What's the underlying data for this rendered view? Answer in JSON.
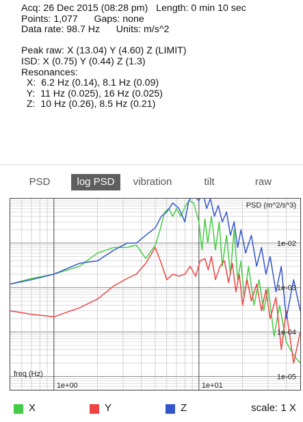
{
  "info": {
    "line1": "Acq: 26 Dec 2015 (08:28 pm)   Length: 0 min 10 sec",
    "line2": "Points: 1,077      Gaps: none",
    "line3": "Data rate: 98.7 Hz      Units: m/s^2",
    "line4": "Peak raw: X (13.04) Y (4.60) Z (LIMIT)",
    "line5": "ISD: X (0.75) Y (0.44) Z (1.3)",
    "line6": "Resonances:",
    "line7": "  X:  6.2 Hz (0.14), 8.1 Hz (0.09)",
    "line8": "  Y:  11 Hz (0.025), 16 Hz (0.025)",
    "line9": "  Z:  10 Hz (0.26), 8.5 Hz (0.21)"
  },
  "tabs": [
    {
      "label": "PSD",
      "active": false
    },
    {
      "label": "log PSD",
      "active": true
    },
    {
      "label": "vibration",
      "active": false
    },
    {
      "label": "tilt",
      "active": false
    },
    {
      "label": "raw",
      "active": false
    }
  ],
  "chart_data": {
    "type": "line",
    "title": "PSD (m^2/s^3)",
    "xlabel": "freq (Hz)",
    "x_scale": "log",
    "y_scale": "log",
    "xlim": [
      0.5,
      50
    ],
    "ylim": [
      5e-06,
      0.1
    ],
    "x_ticks": [
      "1e+00",
      "1e+01"
    ],
    "y_ticks": [
      "1e-02",
      "1e-03",
      "1e-04",
      "1e-05"
    ],
    "series": [
      {
        "name": "X",
        "color": "#44cc44",
        "x": [
          0.5,
          0.7,
          1.0,
          1.5,
          2.0,
          2.6,
          3.2,
          3.7,
          4.3,
          5.0,
          5.4,
          5.8,
          6.2,
          6.6,
          7.0,
          7.5,
          8.1,
          8.6,
          9.2,
          10.0,
          10.5,
          11.0,
          11.5,
          12.2,
          13.0,
          13.8,
          14.5,
          15.5,
          16.5,
          17.5,
          18.5,
          19.5,
          20.5,
          22,
          24,
          26,
          28,
          30,
          33,
          36,
          40,
          45,
          50
        ],
        "y": [
          0.0012,
          0.0016,
          0.002,
          0.003,
          0.006,
          0.008,
          0.008,
          0.009,
          0.0045,
          0.009,
          0.02,
          0.05,
          0.06,
          0.04,
          0.06,
          0.04,
          0.07,
          0.09,
          0.08,
          0.03,
          0.007,
          0.035,
          0.01,
          0.04,
          0.007,
          0.03,
          0.003,
          0.015,
          0.002,
          0.02,
          0.0015,
          0.004,
          0.0006,
          0.003,
          0.0004,
          0.0015,
          0.0003,
          0.001,
          8e-05,
          0.0004,
          6e-05,
          3e-05,
          2e-05
        ]
      },
      {
        "name": "Y",
        "color": "#ee4444",
        "x": [
          0.5,
          0.7,
          1.0,
          1.5,
          2.0,
          2.6,
          3.2,
          3.7,
          4.3,
          5.0,
          5.5,
          6.0,
          6.6,
          7.3,
          8.0,
          8.7,
          9.5,
          10.2,
          11.0,
          11.6,
          12.2,
          13.0,
          14.0,
          15.0,
          16.0,
          17.0,
          18.0,
          19.0,
          20.0,
          21.5,
          23,
          25,
          27,
          29,
          31,
          34,
          37,
          40,
          45,
          50
        ],
        "y": [
          0.0003,
          0.00025,
          0.00022,
          0.00035,
          0.00055,
          0.0011,
          0.0016,
          0.002,
          0.0035,
          0.008,
          0.0035,
          0.0015,
          0.002,
          0.0018,
          0.002,
          0.003,
          0.0018,
          0.004,
          0.0045,
          0.0025,
          0.005,
          0.0015,
          0.003,
          0.004,
          0.0013,
          0.0035,
          0.0008,
          0.002,
          0.0004,
          0.0015,
          0.0005,
          0.0012,
          0.0003,
          0.0009,
          0.0002,
          0.0006,
          4e-05,
          0.0003,
          2e-05,
          0.0001
        ]
      },
      {
        "name": "Z",
        "color": "#3355cc",
        "x": [
          0.5,
          0.7,
          1.0,
          1.5,
          2.0,
          2.6,
          3.2,
          3.7,
          4.3,
          5.0,
          5.5,
          6.0,
          6.6,
          7.3,
          8.0,
          8.5,
          9.2,
          10.0,
          10.6,
          11.3,
          12.0,
          12.8,
          13.6,
          14.5,
          15.5,
          16.5,
          17.5,
          18.5,
          19.5,
          21,
          23,
          25,
          27,
          29,
          31,
          34,
          37,
          40,
          45,
          50
        ],
        "y": [
          0.0012,
          0.0015,
          0.002,
          0.0035,
          0.004,
          0.007,
          0.01,
          0.01,
          0.015,
          0.022,
          0.04,
          0.05,
          0.08,
          0.06,
          0.03,
          0.09,
          0.12,
          0.09,
          0.15,
          0.06,
          0.1,
          0.04,
          0.07,
          0.03,
          0.05,
          0.015,
          0.03,
          0.008,
          0.02,
          0.006,
          0.015,
          0.003,
          0.008,
          0.002,
          0.005,
          0.0008,
          0.003,
          0.0002,
          0.0015,
          0.0003
        ]
      }
    ]
  },
  "legend": [
    {
      "label": "X",
      "color": "#44cc44"
    },
    {
      "label": "Y",
      "color": "#ee4444"
    },
    {
      "label": "Z",
      "color": "#3355cc"
    }
  ],
  "scale_label": "scale: 1 X"
}
